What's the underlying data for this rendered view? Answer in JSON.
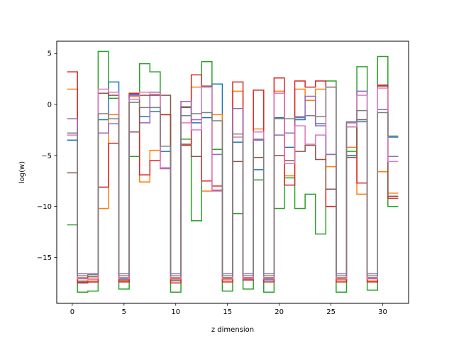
{
  "chart_data": {
    "type": "line",
    "subtype": "step",
    "xlabel": "z dimension",
    "ylabel": "log(w)",
    "xlim": [
      -1.5,
      32.5
    ],
    "ylim": [
      -19.5,
      6.2
    ],
    "xticks": [
      0,
      5,
      10,
      15,
      20,
      25,
      30
    ],
    "yticks": [
      5,
      0,
      -5,
      -10,
      -15
    ],
    "grid": false,
    "legend": "none",
    "x": [
      0,
      1,
      2,
      3,
      4,
      5,
      6,
      7,
      8,
      9,
      10,
      11,
      12,
      13,
      14,
      15,
      16,
      17,
      18,
      19,
      20,
      21,
      22,
      23,
      24,
      25,
      26,
      27,
      28,
      29,
      30,
      31
    ],
    "series": [
      {
        "color": "#1f77b4",
        "values": [
          -3.5,
          -17.4,
          -17.4,
          -1.5,
          2.2,
          -17.2,
          1.0,
          -1.2,
          -0.7,
          -4.6,
          -17.3,
          -0.3,
          -1.8,
          -1.3,
          2.0,
          -17.0,
          -3.7,
          -17.2,
          -6.4,
          -17.2,
          -1.3,
          -4.2,
          -1.5,
          -1.1,
          -1.9,
          -4.9,
          -17.2,
          -5.0,
          -1.7,
          -17.0,
          -0.5,
          -3.2
        ]
      },
      {
        "color": "#ff7f0e",
        "values": [
          1.5,
          -17.3,
          -17.2,
          -10.2,
          -1.0,
          -17.3,
          0.8,
          -7.6,
          -4.5,
          -1.0,
          -17.2,
          -0.2,
          1.7,
          -8.5,
          -1.0,
          -17.2,
          1.3,
          -17.0,
          -2.4,
          -17.0,
          1.3,
          -7.0,
          1.5,
          0.4,
          1.5,
          -6.1,
          -17.2,
          -4.2,
          -8.8,
          -17.3,
          -6.6,
          -8.7
        ]
      },
      {
        "color": "#2ca02c",
        "values": [
          -11.8,
          -18.4,
          -18.3,
          5.2,
          0.6,
          -18.1,
          -5.1,
          4.0,
          3.2,
          -1.0,
          -18.4,
          -3.4,
          -11.4,
          4.2,
          -4.4,
          -18.3,
          -10.7,
          -18.1,
          -7.4,
          -18.4,
          -10.2,
          -7.2,
          -10.2,
          -8.8,
          -12.7,
          2.3,
          -18.4,
          -4.6,
          3.7,
          -18.2,
          4.7,
          -10.0
        ]
      },
      {
        "color": "#d62728",
        "values": [
          3.2,
          -17.5,
          -17.4,
          -8.1,
          -3.8,
          -17.4,
          1.1,
          -6.9,
          -5.5,
          -1.0,
          -17.5,
          -4.0,
          2.9,
          -7.5,
          -8.0,
          -17.4,
          2.2,
          -17.2,
          1.4,
          -17.4,
          2.6,
          -7.9,
          2.3,
          1.7,
          2.3,
          -10.0,
          -17.4,
          -2.2,
          -7.7,
          -17.4,
          1.9,
          -9.2
        ]
      },
      {
        "color": "#9467bd",
        "values": [
          -1.4,
          -16.6,
          -16.6,
          -2.8,
          -1.9,
          -16.6,
          0.9,
          -1.8,
          1.2,
          -6.3,
          -16.6,
          0.3,
          -1.5,
          1.7,
          -4.9,
          -16.6,
          -0.4,
          -16.6,
          -3.5,
          -16.6,
          -3.0,
          -2.8,
          -1.3,
          0.8,
          -2.1,
          -4.9,
          -16.6,
          -1.8,
          1.3,
          -16.6,
          -0.5,
          -5.1
        ]
      },
      {
        "color": "#8c564b",
        "values": [
          -6.7,
          -17.0,
          -16.9,
          1.1,
          0.9,
          -17.0,
          -2.7,
          0.9,
          0.9,
          0.9,
          -17.0,
          -3.9,
          -5.1,
          1.8,
          -8.4,
          -17.0,
          -5.6,
          -17.0,
          -5.2,
          -17.0,
          -5.0,
          -5.5,
          -4.6,
          -4.0,
          -5.4,
          -8.3,
          -17.0,
          -5.2,
          -1.5,
          -17.0,
          1.8,
          -9.0
        ]
      },
      {
        "color": "#e377c2",
        "values": [
          -3.0,
          -17.1,
          -17.1,
          1.5,
          1.2,
          -17.1,
          0.5,
          1.2,
          1.0,
          -6.2,
          -17.1,
          -1.8,
          -2.5,
          1.7,
          -8.5,
          -17.1,
          -3.2,
          -17.1,
          -2.7,
          -17.1,
          1.1,
          -5.8,
          -2.1,
          -3.9,
          -3.0,
          1.7,
          -17.1,
          -2.2,
          0.9,
          -17.1,
          1.6,
          -5.6
        ]
      },
      {
        "color": "#7f7f7f",
        "values": [
          -2.8,
          -16.8,
          -16.7,
          -0.9,
          -1.4,
          -16.8,
          0.2,
          -0.3,
          -0.3,
          -4.1,
          -16.8,
          -1.1,
          -0.9,
          -0.8,
          -1.6,
          -16.8,
          -2.9,
          -16.8,
          -3.4,
          -16.8,
          -1.4,
          -1.4,
          -1.2,
          -1.1,
          -1.2,
          1.7,
          -16.8,
          -1.7,
          -0.6,
          -16.8,
          -0.8,
          -3.1
        ]
      }
    ]
  }
}
